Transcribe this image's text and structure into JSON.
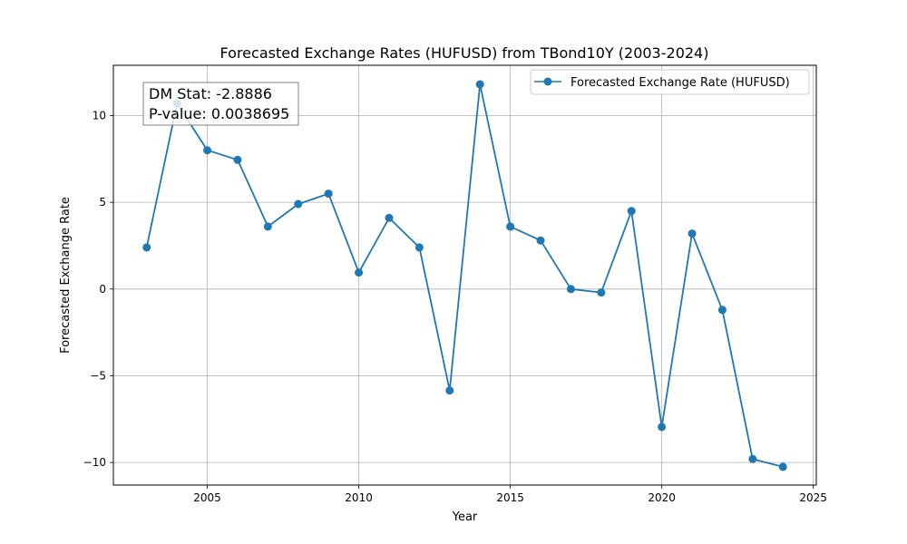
{
  "chart_data": {
    "type": "line",
    "title": "Forecasted Exchange Rates (HUFUSD) from TBond10Y (2003-2024)",
    "xlabel": "Year",
    "ylabel": "Forecasted Exchange Rate",
    "xlim": [
      2001.9,
      2025.1
    ],
    "ylim": [
      -11.3,
      12.9
    ],
    "x_ticks": [
      2005,
      2010,
      2015,
      2020,
      2025
    ],
    "y_ticks": [
      -10,
      -5,
      0,
      5,
      10
    ],
    "x_tick_labels": [
      "2005",
      "2010",
      "2015",
      "2020",
      "2025"
    ],
    "y_tick_labels": [
      "−10",
      "−5",
      "0",
      "5",
      "10"
    ],
    "grid": true,
    "legend_position": "top-right",
    "series": [
      {
        "name": "Forecasted Exchange Rate (HUFUSD)",
        "color": "#1f77b4",
        "x": [
          2003,
          2004,
          2005,
          2006,
          2007,
          2008,
          2009,
          2010,
          2011,
          2012,
          2013,
          2014,
          2015,
          2016,
          2017,
          2018,
          2019,
          2020,
          2021,
          2022,
          2023,
          2024
        ],
        "y": [
          2.4,
          10.7,
          8.0,
          7.45,
          3.6,
          4.9,
          5.5,
          0.95,
          4.1,
          2.4,
          -5.85,
          11.8,
          3.6,
          2.8,
          0.0,
          -0.2,
          4.5,
          -7.95,
          3.2,
          -1.2,
          -9.8,
          -10.25
        ]
      }
    ],
    "annotation": {
      "dm_stat": "DM Stat: -2.8886",
      "p_value": "P-value: 0.0038695"
    }
  }
}
